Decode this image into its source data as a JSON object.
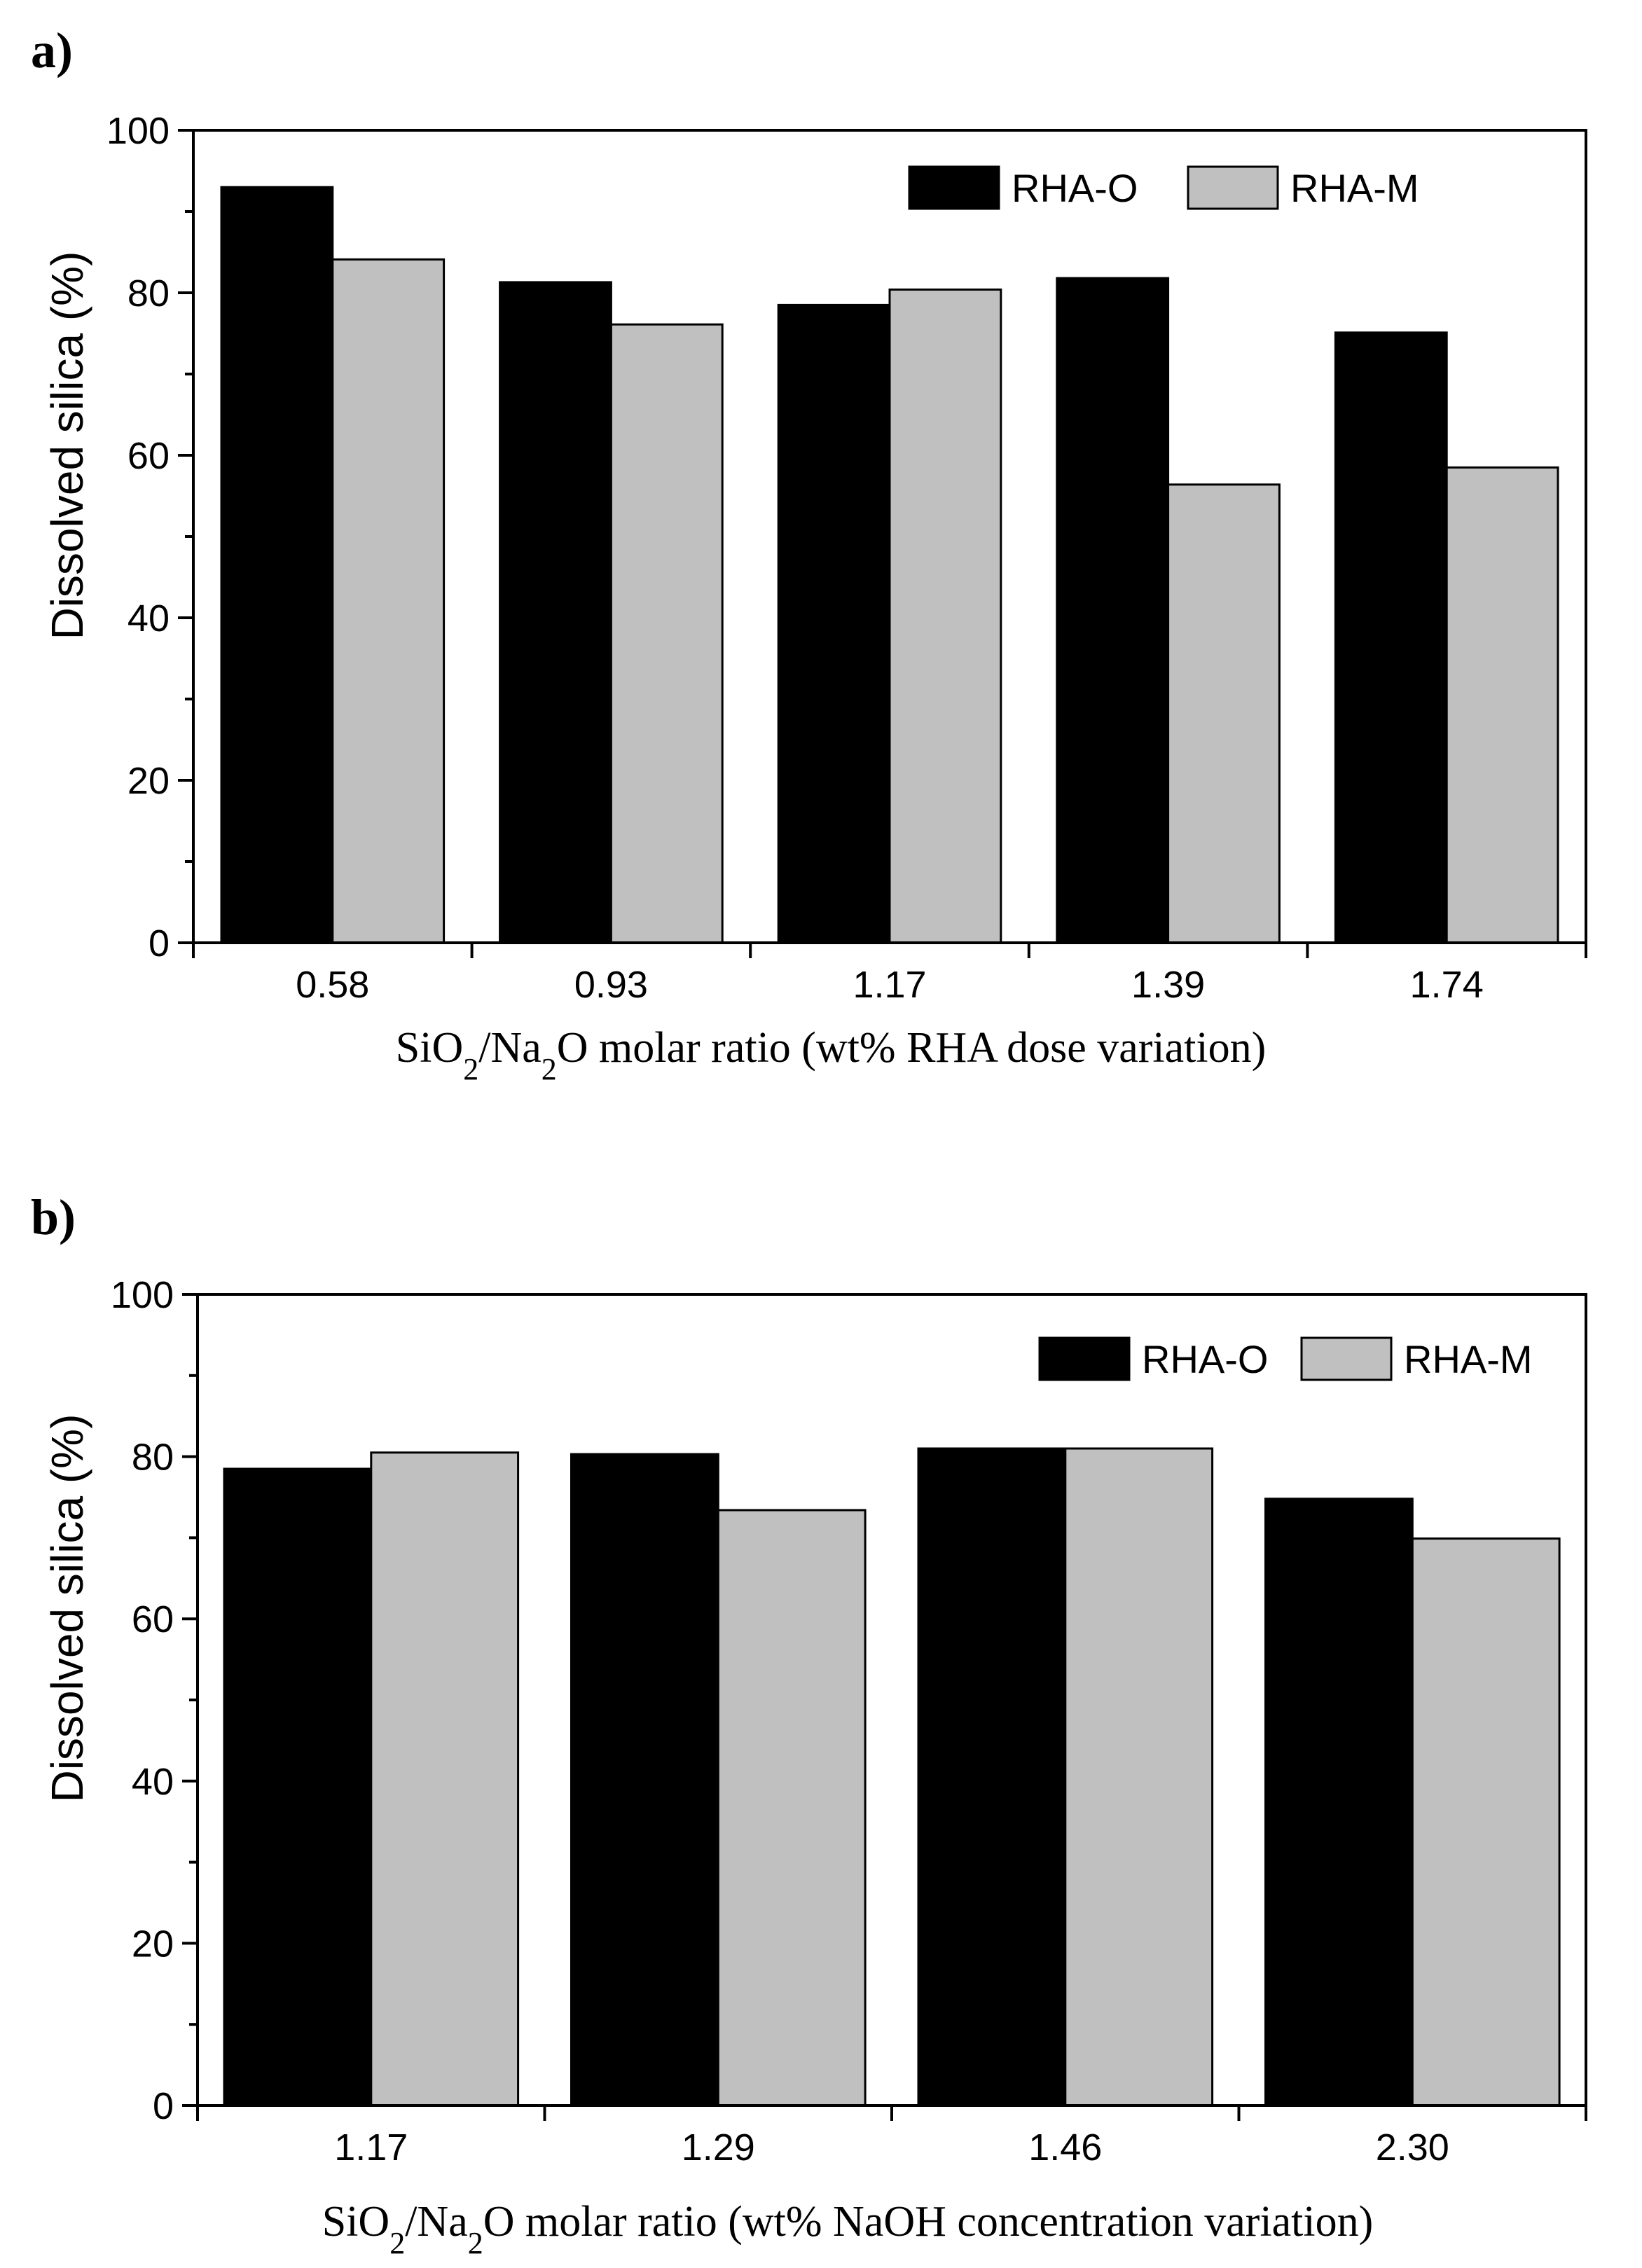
{
  "chart_data": [
    {
      "type": "bar",
      "panel_label": "a)",
      "categories": [
        "0.58",
        "0.93",
        "1.17",
        "1.39",
        "1.74"
      ],
      "series": [
        {
          "name": "RHA-O",
          "color": "#000000",
          "values": [
            93.0,
            81.3,
            78.5,
            81.8,
            75.1
          ]
        },
        {
          "name": "RHA-M",
          "color": "#c0c0c0",
          "values": [
            84.1,
            76.1,
            80.4,
            56.4,
            58.5
          ]
        }
      ],
      "xlabel": {
        "pre": "SiO",
        "sub1": "2",
        "mid": "/Na",
        "sub2": "2",
        "post": "O molar ratio (wt% RHA dose variation)"
      },
      "ylabel": "Dissolved silica (%)",
      "ylim": [
        0,
        100
      ],
      "yticks": [
        "0",
        "20",
        "40",
        "60",
        "80",
        "100"
      ],
      "grid": false,
      "legend": "top-right"
    },
    {
      "type": "bar",
      "panel_label": "b)",
      "categories": [
        "1.17",
        "1.29",
        "1.46",
        "2.30"
      ],
      "series": [
        {
          "name": "RHA-O",
          "color": "#000000",
          "values": [
            78.5,
            80.3,
            81.0,
            74.8
          ]
        },
        {
          "name": "RHA-M",
          "color": "#c0c0c0",
          "values": [
            80.5,
            73.4,
            81.0,
            69.9
          ]
        }
      ],
      "xlabel": {
        "pre": "SiO",
        "sub1": "2",
        "mid": "/Na",
        "sub2": "2",
        "post": "O molar ratio (wt% NaOH concentration variation)"
      },
      "ylabel": "Dissolved silica (%)",
      "ylim": [
        0,
        100
      ],
      "yticks": [
        "0",
        "20",
        "40",
        "60",
        "80",
        "100"
      ],
      "grid": false,
      "legend": "top-right"
    }
  ]
}
